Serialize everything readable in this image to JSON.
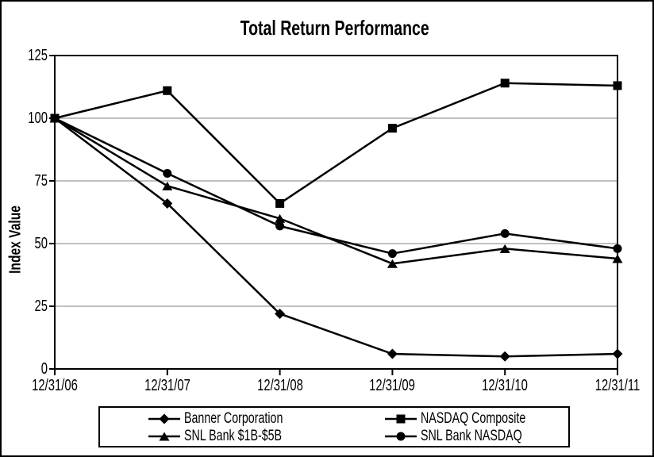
{
  "chart_data": {
    "type": "line",
    "title": "Total Return Performance",
    "ylabel": "Index Value",
    "xlabel": "",
    "ylim": [
      0,
      125
    ],
    "yticks": [
      0,
      25,
      50,
      75,
      100,
      125
    ],
    "grid": true,
    "legend_position": "bottom",
    "categories": [
      "12/31/06",
      "12/31/07",
      "12/31/08",
      "12/31/09",
      "12/31/10",
      "12/31/11"
    ],
    "series": [
      {
        "name": "Banner Corporation",
        "marker": "diamond",
        "values": [
          100,
          66,
          22,
          6,
          5,
          6
        ]
      },
      {
        "name": "NASDAQ Composite",
        "marker": "square",
        "values": [
          100,
          111,
          66,
          96,
          114,
          113
        ]
      },
      {
        "name": "SNL Bank $1B-$5B",
        "marker": "triangle",
        "values": [
          100,
          73,
          60,
          42,
          48,
          44
        ]
      },
      {
        "name": "SNL Bank NASDAQ",
        "marker": "circle",
        "values": [
          100,
          78,
          57,
          46,
          54,
          48
        ]
      }
    ],
    "colors": {
      "series": "#000000",
      "grid": "#808080",
      "frame": "#000000",
      "background": "#ffffff"
    }
  }
}
